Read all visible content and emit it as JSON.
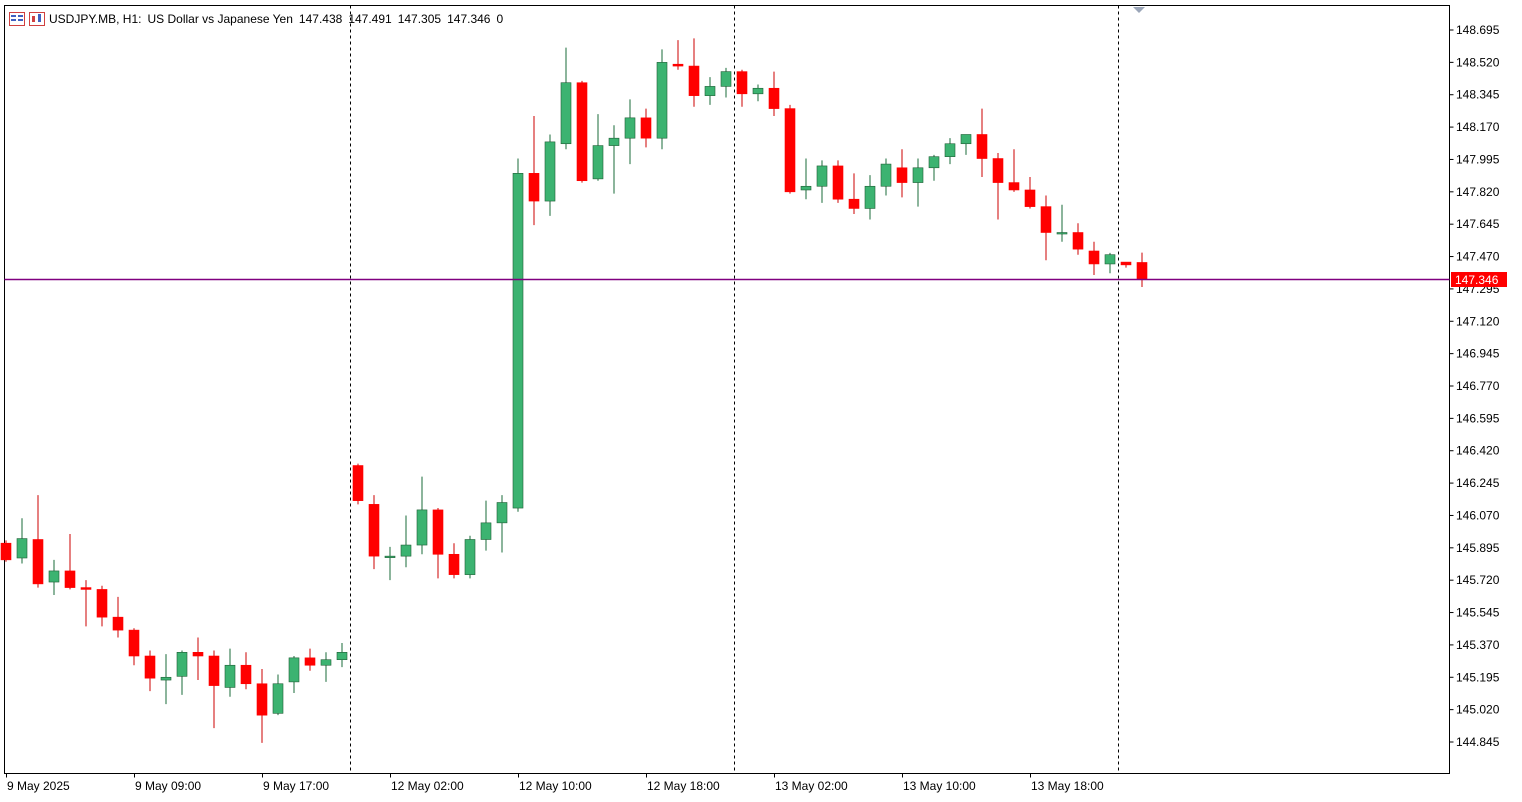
{
  "header": {
    "symbol": "USDJPY.MB, H1:",
    "description": "US Dollar vs Japanese Yen",
    "open": "147.438",
    "high": "147.491",
    "low": "147.305",
    "close": "147.346",
    "volume": "0"
  },
  "colors": {
    "bull": "#3cb371",
    "bear": "#ff0000",
    "price_line": "#800080",
    "price_label_bg": "#ff0000",
    "grid_sep": "#000000"
  },
  "chart_data": {
    "type": "candlestick",
    "symbol": "USDJPY.MB",
    "timeframe": "H1",
    "current_price": 147.346,
    "current_price_label": "147.346",
    "ylim": [
      144.7,
      148.8
    ],
    "y_ticks": [
      "148.695",
      "148.520",
      "148.345",
      "148.170",
      "147.995",
      "147.820",
      "147.645",
      "147.470",
      "147.295",
      "147.120",
      "146.945",
      "146.770",
      "146.595",
      "146.420",
      "146.245",
      "146.070",
      "145.895",
      "145.720",
      "145.545",
      "145.370",
      "145.195",
      "145.020",
      "144.845"
    ],
    "x_labels": [
      {
        "label": "9 May 2025",
        "index": 0
      },
      {
        "label": "9 May 09:00",
        "index": 8
      },
      {
        "label": "9 May 17:00",
        "index": 16
      },
      {
        "label": "12 May 02:00",
        "index": 24
      },
      {
        "label": "12 May 10:00",
        "index": 32
      },
      {
        "label": "12 May 18:00",
        "index": 40
      },
      {
        "label": "13 May 02:00",
        "index": 48
      },
      {
        "label": "13 May 10:00",
        "index": 56
      },
      {
        "label": "13 May 18:00",
        "index": 64
      }
    ],
    "day_separators_after_index": [
      21.5,
      45.5,
      69.5
    ],
    "candles": [
      {
        "o": 145.92,
        "h": 145.935,
        "l": 145.82,
        "c": 145.83
      },
      {
        "o": 145.84,
        "h": 146.055,
        "l": 145.81,
        "c": 145.945
      },
      {
        "o": 145.94,
        "h": 146.18,
        "l": 145.68,
        "c": 145.7
      },
      {
        "o": 145.71,
        "h": 145.83,
        "l": 145.64,
        "c": 145.77
      },
      {
        "o": 145.77,
        "h": 145.97,
        "l": 145.67,
        "c": 145.68
      },
      {
        "o": 145.68,
        "h": 145.72,
        "l": 145.47,
        "c": 145.67
      },
      {
        "o": 145.67,
        "h": 145.69,
        "l": 145.47,
        "c": 145.52
      },
      {
        "o": 145.52,
        "h": 145.63,
        "l": 145.41,
        "c": 145.45
      },
      {
        "o": 145.45,
        "h": 145.46,
        "l": 145.26,
        "c": 145.31
      },
      {
        "o": 145.31,
        "h": 145.34,
        "l": 145.12,
        "c": 145.19
      },
      {
        "o": 145.18,
        "h": 145.32,
        "l": 145.05,
        "c": 145.195
      },
      {
        "o": 145.2,
        "h": 145.34,
        "l": 145.1,
        "c": 145.33
      },
      {
        "o": 145.33,
        "h": 145.41,
        "l": 145.18,
        "c": 145.31
      },
      {
        "o": 145.31,
        "h": 145.34,
        "l": 144.92,
        "c": 145.15
      },
      {
        "o": 145.14,
        "h": 145.35,
        "l": 145.09,
        "c": 145.26
      },
      {
        "o": 145.26,
        "h": 145.33,
        "l": 145.13,
        "c": 145.16
      },
      {
        "o": 145.16,
        "h": 145.24,
        "l": 144.84,
        "c": 144.99
      },
      {
        "o": 145.0,
        "h": 145.21,
        "l": 144.99,
        "c": 145.16
      },
      {
        "o": 145.17,
        "h": 145.31,
        "l": 145.11,
        "c": 145.3
      },
      {
        "o": 145.3,
        "h": 145.35,
        "l": 145.23,
        "c": 145.26
      },
      {
        "o": 145.26,
        "h": 145.33,
        "l": 145.17,
        "c": 145.29
      },
      {
        "o": 145.29,
        "h": 145.38,
        "l": 145.25,
        "c": 145.33
      },
      {
        "o": 146.34,
        "h": 146.35,
        "l": 146.13,
        "c": 146.15
      },
      {
        "o": 146.13,
        "h": 146.18,
        "l": 145.78,
        "c": 145.85
      },
      {
        "o": 145.85,
        "h": 145.9,
        "l": 145.72,
        "c": 145.85
      },
      {
        "o": 145.85,
        "h": 146.07,
        "l": 145.79,
        "c": 145.91
      },
      {
        "o": 145.91,
        "h": 146.28,
        "l": 145.86,
        "c": 146.1
      },
      {
        "o": 146.1,
        "h": 146.11,
        "l": 145.73,
        "c": 145.86
      },
      {
        "o": 145.86,
        "h": 145.92,
        "l": 145.73,
        "c": 145.75
      },
      {
        "o": 145.75,
        "h": 145.96,
        "l": 145.73,
        "c": 145.94
      },
      {
        "o": 145.94,
        "h": 146.15,
        "l": 145.88,
        "c": 146.03
      },
      {
        "o": 146.03,
        "h": 146.18,
        "l": 145.87,
        "c": 146.14
      },
      {
        "o": 146.11,
        "h": 148.0,
        "l": 146.09,
        "c": 147.92
      },
      {
        "o": 147.92,
        "h": 148.23,
        "l": 147.64,
        "c": 147.77
      },
      {
        "o": 147.77,
        "h": 148.13,
        "l": 147.69,
        "c": 148.09
      },
      {
        "o": 148.08,
        "h": 148.6,
        "l": 148.05,
        "c": 148.41
      },
      {
        "o": 148.41,
        "h": 148.42,
        "l": 147.87,
        "c": 147.88
      },
      {
        "o": 147.89,
        "h": 148.24,
        "l": 147.88,
        "c": 148.07
      },
      {
        "o": 148.07,
        "h": 148.18,
        "l": 147.81,
        "c": 148.11
      },
      {
        "o": 148.11,
        "h": 148.32,
        "l": 147.97,
        "c": 148.22
      },
      {
        "o": 148.22,
        "h": 148.27,
        "l": 148.06,
        "c": 148.11
      },
      {
        "o": 148.11,
        "h": 148.59,
        "l": 148.05,
        "c": 148.52
      },
      {
        "o": 148.51,
        "h": 148.64,
        "l": 148.48,
        "c": 148.5
      },
      {
        "o": 148.5,
        "h": 148.65,
        "l": 148.28,
        "c": 148.34
      },
      {
        "o": 148.34,
        "h": 148.44,
        "l": 148.29,
        "c": 148.39
      },
      {
        "o": 148.39,
        "h": 148.49,
        "l": 148.33,
        "c": 148.47
      },
      {
        "o": 148.47,
        "h": 148.48,
        "l": 148.28,
        "c": 148.35
      },
      {
        "o": 148.35,
        "h": 148.4,
        "l": 148.31,
        "c": 148.38
      },
      {
        "o": 148.38,
        "h": 148.47,
        "l": 148.23,
        "c": 148.27
      },
      {
        "o": 148.27,
        "h": 148.29,
        "l": 147.81,
        "c": 147.82
      },
      {
        "o": 147.83,
        "h": 148.0,
        "l": 147.78,
        "c": 147.85
      },
      {
        "o": 147.85,
        "h": 147.99,
        "l": 147.76,
        "c": 147.96
      },
      {
        "o": 147.96,
        "h": 147.99,
        "l": 147.76,
        "c": 147.78
      },
      {
        "o": 147.78,
        "h": 147.92,
        "l": 147.7,
        "c": 147.73
      },
      {
        "o": 147.73,
        "h": 147.91,
        "l": 147.67,
        "c": 147.85
      },
      {
        "o": 147.85,
        "h": 148.0,
        "l": 147.8,
        "c": 147.97
      },
      {
        "o": 147.95,
        "h": 148.05,
        "l": 147.79,
        "c": 147.87
      },
      {
        "o": 147.87,
        "h": 148.0,
        "l": 147.74,
        "c": 147.95
      },
      {
        "o": 147.95,
        "h": 148.02,
        "l": 147.88,
        "c": 148.01
      },
      {
        "o": 148.01,
        "h": 148.11,
        "l": 147.97,
        "c": 148.08
      },
      {
        "o": 148.08,
        "h": 148.13,
        "l": 148.02,
        "c": 148.13
      },
      {
        "o": 148.13,
        "h": 148.27,
        "l": 147.9,
        "c": 148.0
      },
      {
        "o": 148.0,
        "h": 148.03,
        "l": 147.67,
        "c": 147.87
      },
      {
        "o": 147.87,
        "h": 148.05,
        "l": 147.82,
        "c": 147.83
      },
      {
        "o": 147.83,
        "h": 147.9,
        "l": 147.73,
        "c": 147.74
      },
      {
        "o": 147.74,
        "h": 147.8,
        "l": 147.45,
        "c": 147.6
      },
      {
        "o": 147.6,
        "h": 147.75,
        "l": 147.55,
        "c": 147.6
      },
      {
        "o": 147.6,
        "h": 147.65,
        "l": 147.48,
        "c": 147.51
      },
      {
        "o": 147.5,
        "h": 147.55,
        "l": 147.37,
        "c": 147.43
      },
      {
        "o": 147.43,
        "h": 147.49,
        "l": 147.38,
        "c": 147.48
      },
      {
        "o": 147.44,
        "h": 147.44,
        "l": 147.41,
        "c": 147.425
      },
      {
        "o": 147.438,
        "h": 147.491,
        "l": 147.305,
        "c": 147.346
      }
    ]
  }
}
